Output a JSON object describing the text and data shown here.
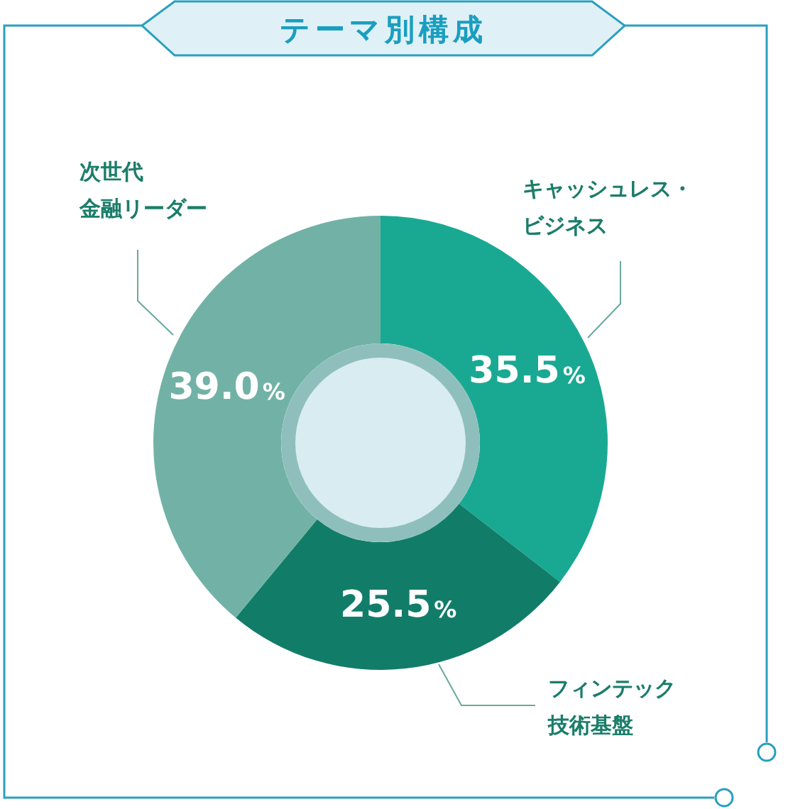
{
  "chart_data": {
    "type": "donut",
    "title": "テーマ別構成",
    "categories": [
      "キャッシュレス・ビジネス",
      "フィンテック技術基盤",
      "次世代金融リーダー"
    ],
    "values": [
      35.5,
      25.5,
      39.0
    ],
    "value_labels": [
      "35.5%",
      "25.5%",
      "39.0%"
    ],
    "colors": [
      "#19a993",
      "#117d69",
      "#72b2a6"
    ]
  }
}
